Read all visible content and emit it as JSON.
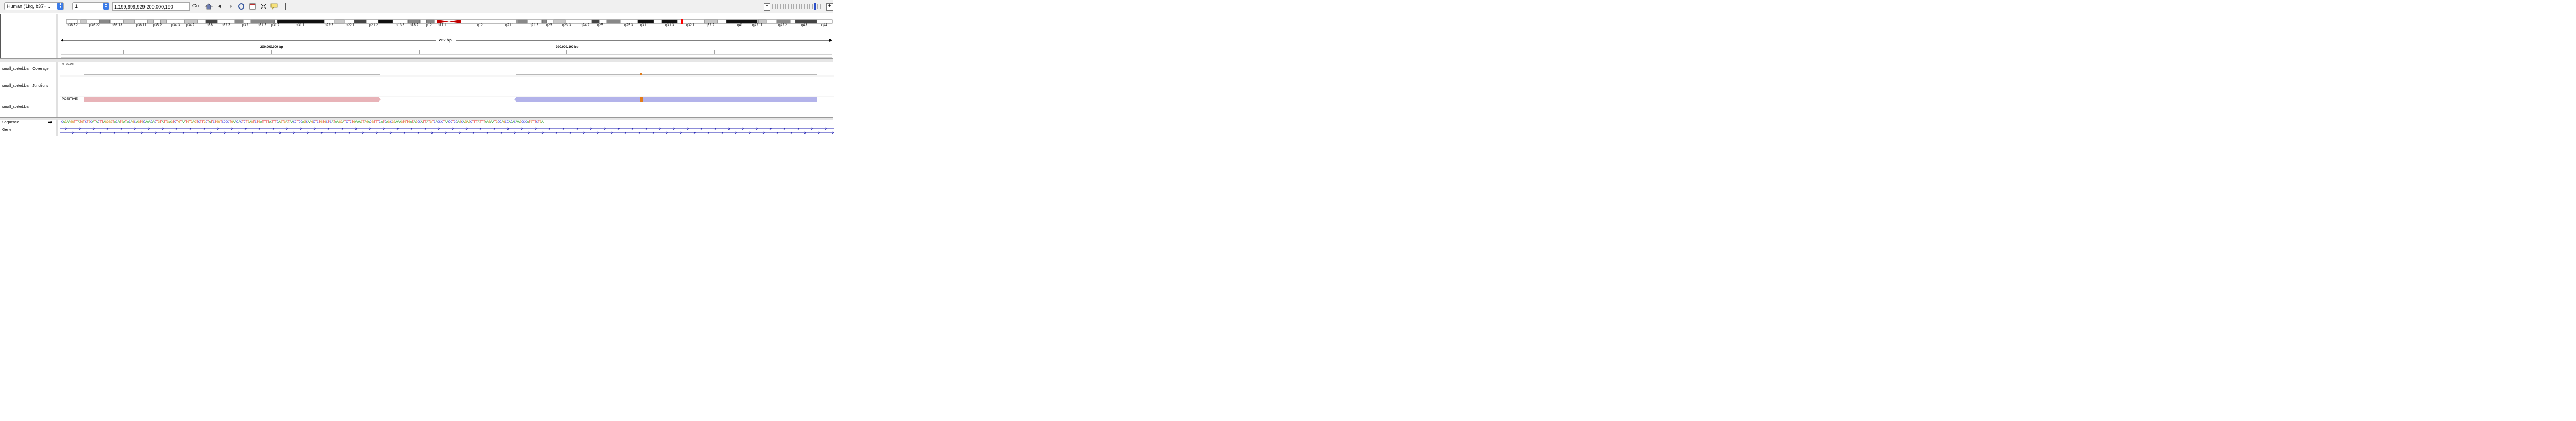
{
  "toolbar": {
    "genome": "Human (1kg, b37+...",
    "chromosome": "1",
    "locus": "1:199,999,929-200,000,190",
    "go_label": "Go"
  },
  "ideogram": {
    "bands": [
      "p36.32",
      "p36.22",
      "p36.13",
      "p36.11",
      "p35.2",
      "p34.3",
      "p34.2",
      "p33",
      "p32.3",
      "p32.1",
      "p31.3",
      "p31.2",
      "p31.1",
      "p22.3",
      "p22.1",
      "p21.2",
      "p13.3",
      "p13.2",
      "p12",
      "p11.1",
      "q12",
      "q21.1",
      "q21.3",
      "q23.1",
      "q23.3",
      "q24.2",
      "q25.1",
      "q25.3",
      "q31.1",
      "q31.3",
      "q32.1",
      "q32.2",
      "q41",
      "q42.11",
      "q42.2",
      "q43",
      "q44"
    ]
  },
  "ruler": {
    "span": "262 bp",
    "tick1": "200,000,000 bp",
    "tick2": "200,000,100 bp"
  },
  "tracks": {
    "coverage_name": "small_sorted.bam Coverage",
    "coverage_range": "[0 - 10.00]",
    "junctions_name": "small_sorted.bam Junctions",
    "bam_name": "small_sorted.bam",
    "strand_label": "POSITIVE",
    "sequence_name": "Sequence",
    "gene_name": "Gene"
  },
  "sequence": "CAGAAGGTTATGTCTGCATACTTAGGGGTACATGATACAGCAGTGCAAACACTGTATTGAGTCTGTAATGTGAGTCTTGCTATCTGGTCCCCTGAACACTCTGAGTCTGATTTTATTTCAGTGATAACCTCCAGCAAGCTCTGTGCTCATAAGGATCTCTGAAAGTAGACGTTTCATCAGCGGAAAGTGTGATAGCCATTATGTCACCCTAACCTCCAGCAGAGCTTTATTTAAGAATGCCAGCCACACAAGCCCATGTTCTGA",
  "colors": {
    "read_forward": "#e8b3b8",
    "read_reverse": "#b3b3ea",
    "mismatch": "#e07b1a",
    "centromere": "#c00000",
    "current_region": "#ff0000"
  }
}
